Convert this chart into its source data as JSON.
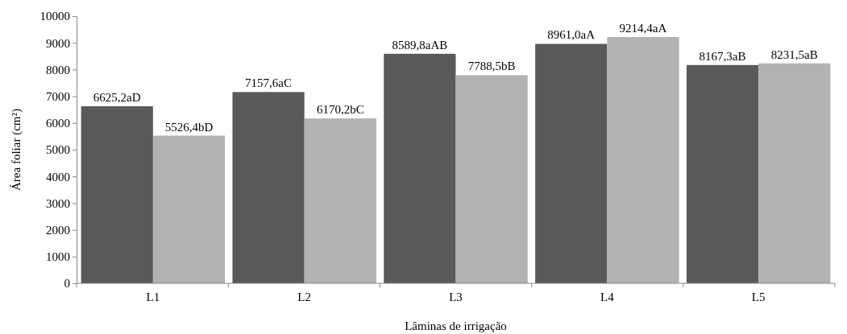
{
  "chart_data": {
    "type": "bar",
    "xlabel": "Lâminas de irrigação",
    "ylabel": "Área foliar (cm²)",
    "categories": [
      "L1",
      "L2",
      "L3",
      "L4",
      "L5"
    ],
    "series": [
      {
        "color": "#595959",
        "values": [
          6625.2,
          7157.6,
          8589.8,
          8961.0,
          8167.3
        ],
        "value_labels": [
          "6625,2aD",
          "7157,6aC",
          "8589,8aAB",
          "8961,0aA",
          "8167,3aB"
        ]
      },
      {
        "color": "#b2b2b2",
        "values": [
          5526.4,
          6170.2,
          7788.5,
          9214.4,
          8231.5
        ],
        "value_labels": [
          "5526,4bD",
          "6170,2bC",
          "7788,5bB",
          "9214,4aA",
          "8231,5aB"
        ]
      }
    ],
    "ylim": [
      0,
      10000
    ],
    "yticks": [
      0,
      1000,
      2000,
      3000,
      4000,
      5000,
      6000,
      7000,
      8000,
      9000,
      10000
    ],
    "grid": false
  }
}
